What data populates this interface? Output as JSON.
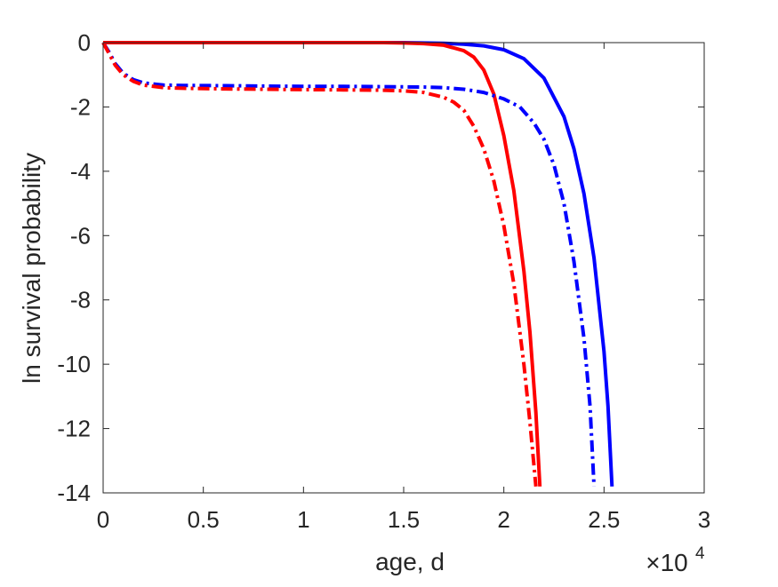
{
  "chart_data": {
    "type": "line",
    "xlabel": "age, d",
    "ylabel": "ln survival probability",
    "xlim": [
      0,
      30000
    ],
    "ylim": [
      -14,
      0
    ],
    "x_ticks": [
      0,
      5000,
      10000,
      15000,
      20000,
      25000,
      30000
    ],
    "x_tick_labels": [
      "0",
      "0.5",
      "1",
      "1.5",
      "2",
      "2.5",
      "3"
    ],
    "x_multiplier": {
      "base": "×10",
      "exponent": "4"
    },
    "y_ticks": [
      0,
      -2,
      -4,
      -6,
      -8,
      -10,
      -12,
      -14
    ],
    "y_tick_labels": [
      "0",
      "-2",
      "-4",
      "-6",
      "-8",
      "-10",
      "-12",
      "-14"
    ],
    "grid": false,
    "series": [
      {
        "color": "#0000ff",
        "dash": "solid",
        "x": [
          0,
          2000,
          5000,
          8000,
          10000,
          12000,
          14000,
          15000,
          16000,
          17000,
          18000,
          19000,
          20000,
          21000,
          22000,
          23000,
          23500,
          24000,
          24500,
          25000,
          25200,
          25400
        ],
        "y": [
          0,
          0,
          0,
          0,
          0,
          0,
          0,
          0,
          -0.01,
          -0.02,
          -0.05,
          -0.1,
          -0.22,
          -0.5,
          -1.1,
          -2.3,
          -3.3,
          -4.7,
          -6.7,
          -9.6,
          -11.3,
          -13.8
        ]
      },
      {
        "color": "#ff0000",
        "dash": "solid",
        "x": [
          0,
          2000,
          5000,
          8000,
          10000,
          12000,
          14000,
          15000,
          16000,
          17000,
          18000,
          18500,
          19000,
          19500,
          20000,
          20500,
          21000,
          21300,
          21600,
          21800
        ],
        "y": [
          0,
          0,
          0,
          0,
          0,
          0,
          0,
          -0.01,
          -0.03,
          -0.08,
          -0.25,
          -0.45,
          -0.85,
          -1.6,
          -2.9,
          -4.6,
          -7.1,
          -9.0,
          -11.5,
          -13.8
        ]
      },
      {
        "color": "#0000ff",
        "dash": "dashdot",
        "x": [
          0,
          300,
          600,
          1000,
          1500,
          2000,
          3000,
          4000,
          6000,
          8000,
          10000,
          12000,
          14000,
          16000,
          17000,
          18000,
          19000,
          20000,
          20800,
          21500,
          22000,
          22500,
          23000,
          23500,
          24000,
          24300,
          24500
        ],
        "y": [
          0,
          -0.3,
          -0.65,
          -0.95,
          -1.15,
          -1.25,
          -1.32,
          -1.33,
          -1.34,
          -1.35,
          -1.36,
          -1.36,
          -1.37,
          -1.38,
          -1.4,
          -1.45,
          -1.55,
          -1.75,
          -2.0,
          -2.5,
          -3.0,
          -3.8,
          -5.0,
          -6.8,
          -9.2,
          -11.3,
          -13.8
        ]
      },
      {
        "color": "#ff0000",
        "dash": "dashdot",
        "x": [
          0,
          300,
          600,
          1000,
          1500,
          2000,
          3000,
          4000,
          6000,
          8000,
          10000,
          12000,
          14000,
          15000,
          16000,
          17000,
          17500,
          18000,
          18500,
          19000,
          19500,
          20000,
          20500,
          21000,
          21300,
          21600
        ],
        "y": [
          0,
          -0.35,
          -0.7,
          -1.0,
          -1.2,
          -1.32,
          -1.4,
          -1.42,
          -1.44,
          -1.45,
          -1.46,
          -1.47,
          -1.48,
          -1.5,
          -1.55,
          -1.7,
          -1.85,
          -2.1,
          -2.6,
          -3.3,
          -4.3,
          -5.7,
          -7.5,
          -10.0,
          -11.8,
          -13.8
        ]
      }
    ]
  }
}
